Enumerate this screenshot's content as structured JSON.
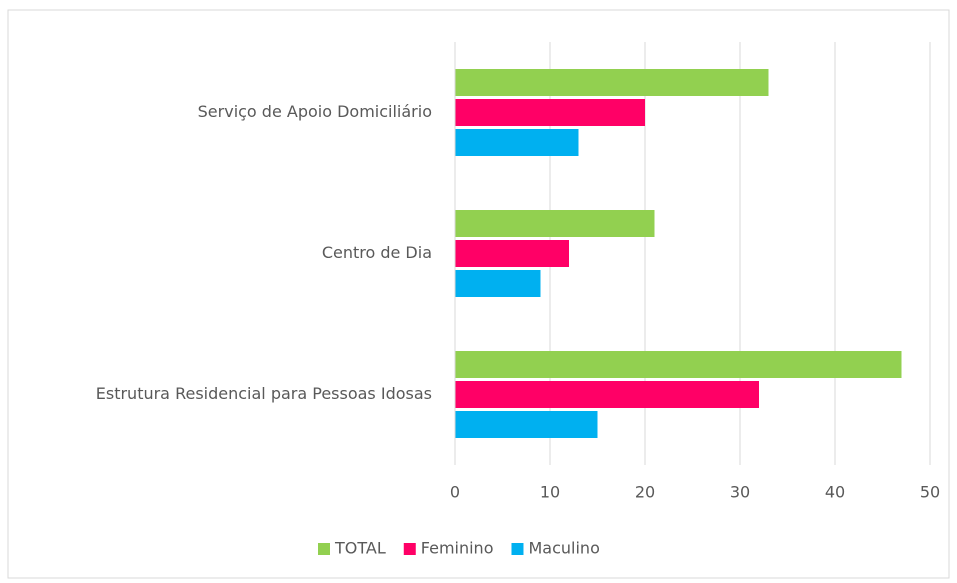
{
  "chart_data": {
    "type": "hbar",
    "categories": [
      "Serviço de Apoio Domiciliário",
      "Centro de Dia",
      "Estrutura Residencial para Pessoas Idosas"
    ],
    "series": [
      {
        "name": "TOTAL",
        "color": "#92d050",
        "values": [
          33,
          21,
          47
        ]
      },
      {
        "name": "Feminino",
        "color": "#ff0066",
        "values": [
          20,
          12,
          32
        ]
      },
      {
        "name": "Maculino",
        "color": "#00b0f0",
        "values": [
          13,
          9,
          15
        ]
      }
    ],
    "xlim": [
      0,
      50
    ],
    "xticks": [
      0,
      10,
      20,
      30,
      40,
      50
    ],
    "grid": true,
    "legend": "bottom"
  }
}
